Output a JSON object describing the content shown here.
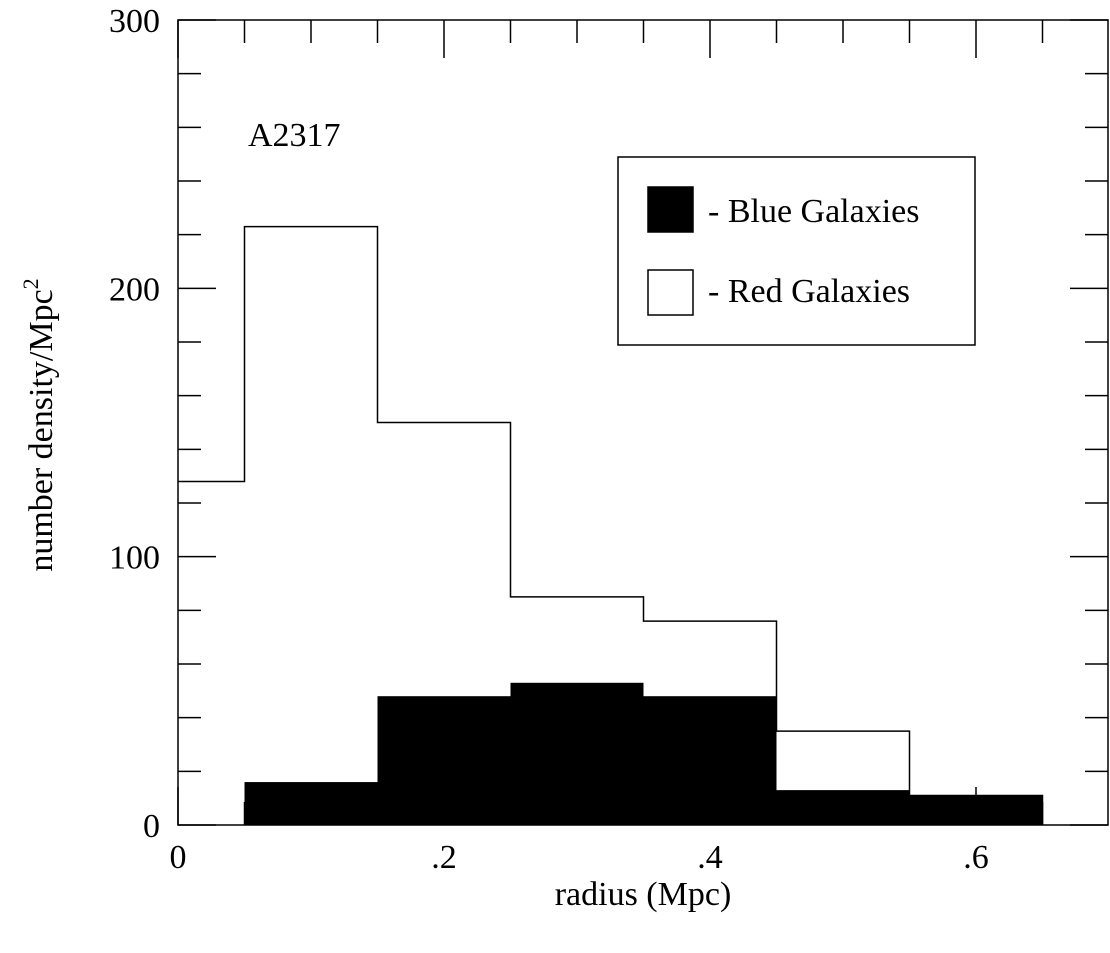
{
  "chart_data": {
    "type": "bar",
    "annotation": "A2317",
    "xlabel": "radius (Mpc)",
    "ylabel": "number density/Mpc",
    "ylabel_superscript": "2",
    "xlim": [
      0,
      0.7
    ],
    "ylim": [
      0,
      300
    ],
    "x_ticks": [
      0,
      0.2,
      0.4,
      0.6
    ],
    "x_tick_labels": [
      "0",
      ".2",
      ".4",
      ".6"
    ],
    "y_ticks": [
      0,
      100,
      200,
      300
    ],
    "y_tick_labels": [
      "0",
      "100",
      "200",
      "300"
    ],
    "grid": false,
    "legend_position": "upper-right",
    "series": [
      {
        "name": "Red Galaxies",
        "legend_label": "- Red Galaxies",
        "style": "outline",
        "color": "#000000",
        "bins": [
          {
            "x0": 0.0,
            "x1": 0.05,
            "value": 128
          },
          {
            "x0": 0.05,
            "x1": 0.15,
            "value": 223
          },
          {
            "x0": 0.15,
            "x1": 0.25,
            "value": 150
          },
          {
            "x0": 0.25,
            "x1": 0.35,
            "value": 85
          },
          {
            "x0": 0.35,
            "x1": 0.45,
            "value": 76
          },
          {
            "x0": 0.45,
            "x1": 0.55,
            "value": 35
          },
          {
            "x0": 0.55,
            "x1": 0.65,
            "value": 11
          }
        ]
      },
      {
        "name": "Blue Galaxies",
        "legend_label": "- Blue Galaxies",
        "style": "filled",
        "color": "#000000",
        "bins": [
          {
            "x0": 0.05,
            "x1": 0.15,
            "value": 16
          },
          {
            "x0": 0.15,
            "x1": 0.25,
            "value": 48
          },
          {
            "x0": 0.25,
            "x1": 0.35,
            "value": 53
          },
          {
            "x0": 0.35,
            "x1": 0.45,
            "value": 48
          },
          {
            "x0": 0.45,
            "x1": 0.55,
            "value": 13
          },
          {
            "x0": 0.55,
            "x1": 0.65,
            "value": 11
          }
        ]
      }
    ]
  }
}
